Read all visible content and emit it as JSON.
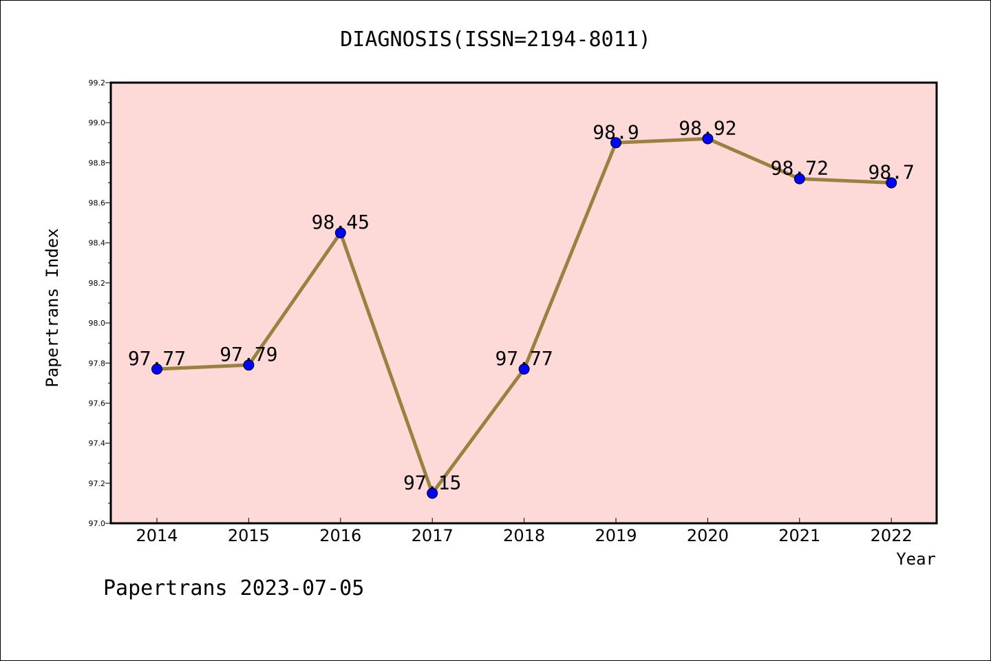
{
  "chart_data": {
    "type": "line",
    "title": "DIAGNOSIS(ISSN=2194-8011)",
    "xlabel": "Year",
    "ylabel": "Papertrans Index",
    "categories": [
      "2014",
      "2015",
      "2016",
      "2017",
      "2018",
      "2019",
      "2020",
      "2021",
      "2022"
    ],
    "series": [
      {
        "values": [
          97.77,
          97.79,
          98.45,
          97.15,
          97.77,
          98.9,
          98.92,
          98.72,
          98.7
        ]
      }
    ],
    "data_labels": [
      "97.77",
      "97.79",
      "98.45",
      "97.15",
      "97.77",
      "98.9",
      "98.92",
      "98.72",
      "98.7"
    ],
    "ylim": [
      97.0,
      99.2
    ],
    "yticks": [
      "97.0",
      "97.2",
      "97.4",
      "97.6",
      "97.8",
      "98.0",
      "98.2",
      "98.4",
      "98.6",
      "98.8",
      "99.0",
      "99.2"
    ],
    "grid": false,
    "colors": {
      "plot_background": "#fdd9d8",
      "line": "#9b8140",
      "marker": "#0000ff"
    }
  },
  "footer": {
    "watermark": "Papertrans 2023-07-05"
  }
}
